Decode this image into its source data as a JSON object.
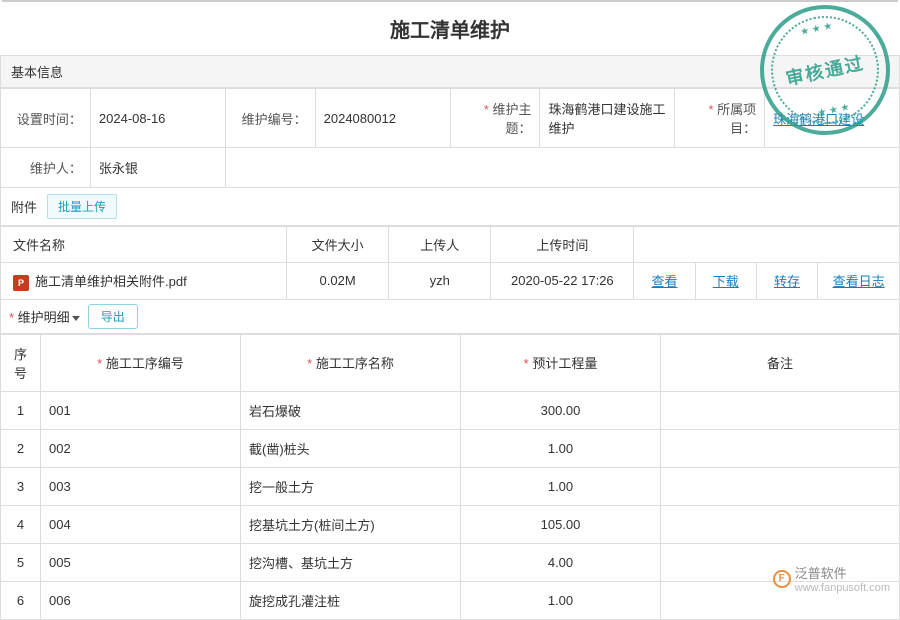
{
  "page": {
    "title": "施工清单维护"
  },
  "stamp": {
    "text": "审核通过"
  },
  "basicInfo": {
    "header": "基本信息",
    "fields": {
      "setTimeLabel": "设置时间：",
      "setTime": "2024-08-16",
      "maintNoLabel": "维护编号：",
      "maintNo": "2024080012",
      "maintSubjectLabel": "维护主题：",
      "maintSubject": "珠海鹤港口建设施工维护",
      "projectLabel": "所属项目：",
      "project": "珠海鹤港口建设",
      "maintainerLabel": "维护人：",
      "maintainer": "张永银"
    }
  },
  "attachments": {
    "label": "附件",
    "uploadBtn": "批量上传",
    "columns": {
      "name": "文件名称",
      "size": "文件大小",
      "uploader": "上传人",
      "time": "上传时间"
    },
    "actions": {
      "view": "查看",
      "download": "下载",
      "transfer": "转存",
      "log": "查看日志"
    },
    "files": [
      {
        "icon": "P",
        "name": "施工清单维护相关附件.pdf",
        "size": "0.02M",
        "uploader": "yzh",
        "time": "2020-05-22 17:26"
      }
    ]
  },
  "detail": {
    "header": "维护明细",
    "exportBtn": "导出",
    "columns": {
      "seq": "序号",
      "code": "施工工序编号",
      "name": "施工工序名称",
      "qty": "预计工程量",
      "remark": "备注"
    },
    "rows": [
      {
        "seq": "1",
        "code": "001",
        "name": "岩石爆破",
        "qty": "300.00",
        "remark": ""
      },
      {
        "seq": "2",
        "code": "002",
        "name": "截(凿)桩头",
        "qty": "1.00",
        "remark": ""
      },
      {
        "seq": "3",
        "code": "003",
        "name": "挖一般土方",
        "qty": "1.00",
        "remark": ""
      },
      {
        "seq": "4",
        "code": "004",
        "name": "挖基坑土方(桩间土方)",
        "qty": "105.00",
        "remark": ""
      },
      {
        "seq": "5",
        "code": "005",
        "name": "挖沟槽、基坑土方",
        "qty": "4.00",
        "remark": ""
      },
      {
        "seq": "6",
        "code": "006",
        "name": "旋挖成孔灌注桩",
        "qty": "1.00",
        "remark": ""
      }
    ]
  },
  "watermark": {
    "brand": "泛普软件",
    "url": "www.fanpusoft.com"
  },
  "colors": {
    "link": "#1a7db8",
    "accent": "#1a9db8",
    "required": "#d9534f",
    "stamp": "#2d9d88",
    "border": "#ddd"
  }
}
